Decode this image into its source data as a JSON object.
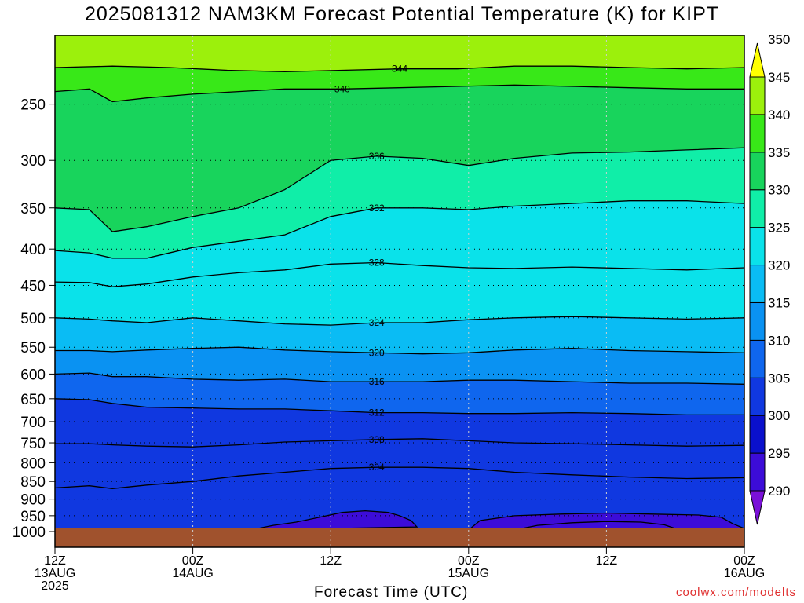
{
  "title": "2025081312 NAM3KM Forecast Potential Temperature (K) for KIPT",
  "credit": "coolwx.com/modelts",
  "chart_data": {
    "type": "heatmap",
    "title": "2025081312 NAM3KM Forecast Potential Temperature (K) for KIPT",
    "xlabel": "Forecast Time (UTC)",
    "ylabel": "",
    "y_scale": "log-pressure",
    "y_range_hpa": [
      1000,
      200
    ],
    "y_ticks": [
      250,
      300,
      350,
      400,
      450,
      500,
      550,
      600,
      650,
      700,
      750,
      800,
      850,
      900,
      950,
      1000
    ],
    "x_ticks": [
      {
        "hour": 0,
        "line1": "12Z",
        "line2": "13AUG",
        "line3": "2025"
      },
      {
        "hour": 12,
        "line1": "00Z",
        "line2": "14AUG",
        "line3": ""
      },
      {
        "hour": 24,
        "line1": "12Z",
        "line2": "",
        "line3": ""
      },
      {
        "hour": 36,
        "line1": "00Z",
        "line2": "15AUG",
        "line3": ""
      },
      {
        "hour": 48,
        "line1": "12Z",
        "line2": "",
        "line3": ""
      },
      {
        "hour": 60,
        "line1": "00Z",
        "line2": "16AUG",
        "line3": ""
      }
    ],
    "grid": true,
    "colorbar": {
      "levels": [
        290,
        295,
        300,
        305,
        310,
        315,
        320,
        325,
        330,
        335,
        340,
        345,
        350
      ],
      "labels": [
        "290",
        "295",
        "300",
        "305",
        "310",
        "315",
        "320",
        "325",
        "330",
        "335",
        "340",
        "345",
        "350"
      ],
      "colors": [
        "#7a10d8",
        "#3c0cd8",
        "#0a10cc",
        "#1038e0",
        "#0f66ee",
        "#0a92f2",
        "#0abcf4",
        "#0ae2ea",
        "#10eea8",
        "#18d45c",
        "#38e818",
        "#9cf00c",
        "#ffff00"
      ]
    },
    "isotherms": [
      {
        "theta": 344,
        "p": [
          [
            0,
            222
          ],
          [
            5,
            221
          ],
          [
            10,
            222
          ],
          [
            15,
            224
          ],
          [
            20,
            225
          ],
          [
            25,
            224
          ],
          [
            30,
            223
          ],
          [
            35,
            223
          ],
          [
            40,
            221
          ],
          [
            45,
            221
          ],
          [
            50,
            222
          ],
          [
            55,
            223
          ],
          [
            60,
            222
          ]
        ]
      },
      {
        "theta": 340,
        "p": [
          [
            0,
            240
          ],
          [
            3,
            238
          ],
          [
            5,
            248
          ],
          [
            8,
            245
          ],
          [
            12,
            242
          ],
          [
            16,
            240
          ],
          [
            20,
            238
          ],
          [
            25,
            238
          ],
          [
            30,
            237
          ],
          [
            35,
            236
          ],
          [
            40,
            235
          ],
          [
            45,
            236
          ],
          [
            50,
            237
          ],
          [
            55,
            238
          ],
          [
            60,
            238
          ]
        ]
      },
      {
        "theta": 336,
        "p": [
          [
            0,
            350
          ],
          [
            3,
            352
          ],
          [
            5,
            378
          ],
          [
            8,
            372
          ],
          [
            12,
            360
          ],
          [
            16,
            350
          ],
          [
            20,
            330
          ],
          [
            24,
            300
          ],
          [
            28,
            296
          ],
          [
            32,
            298
          ],
          [
            36,
            305
          ],
          [
            40,
            298
          ],
          [
            45,
            293
          ],
          [
            50,
            292
          ],
          [
            55,
            290
          ],
          [
            60,
            288
          ]
        ]
      },
      {
        "theta": 332,
        "p": [
          [
            0,
            402
          ],
          [
            3,
            405
          ],
          [
            5,
            412
          ],
          [
            8,
            412
          ],
          [
            12,
            398
          ],
          [
            16,
            390
          ],
          [
            20,
            382
          ],
          [
            24,
            360
          ],
          [
            28,
            350
          ],
          [
            32,
            350
          ],
          [
            36,
            352
          ],
          [
            40,
            348
          ],
          [
            45,
            345
          ],
          [
            50,
            342
          ],
          [
            55,
            342
          ],
          [
            60,
            345
          ]
        ]
      },
      {
        "theta": 328,
        "p": [
          [
            0,
            445
          ],
          [
            3,
            446
          ],
          [
            5,
            452
          ],
          [
            8,
            448
          ],
          [
            12,
            438
          ],
          [
            16,
            432
          ],
          [
            20,
            428
          ],
          [
            24,
            420
          ],
          [
            28,
            418
          ],
          [
            32,
            422
          ],
          [
            36,
            425
          ],
          [
            40,
            426
          ],
          [
            45,
            424
          ],
          [
            50,
            426
          ],
          [
            55,
            428
          ],
          [
            60,
            425
          ]
        ]
      },
      {
        "theta": 324,
        "p": [
          [
            0,
            500
          ],
          [
            3,
            502
          ],
          [
            5,
            505
          ],
          [
            8,
            508
          ],
          [
            12,
            500
          ],
          [
            16,
            505
          ],
          [
            20,
            510
          ],
          [
            24,
            512
          ],
          [
            28,
            508
          ],
          [
            32,
            508
          ],
          [
            36,
            503
          ],
          [
            40,
            500
          ],
          [
            45,
            498
          ],
          [
            50,
            500
          ],
          [
            55,
            502
          ],
          [
            60,
            500
          ]
        ]
      },
      {
        "theta": 320,
        "p": [
          [
            0,
            556
          ],
          [
            3,
            556
          ],
          [
            5,
            558
          ],
          [
            8,
            555
          ],
          [
            12,
            552
          ],
          [
            16,
            550
          ],
          [
            20,
            555
          ],
          [
            24,
            558
          ],
          [
            28,
            560
          ],
          [
            32,
            562
          ],
          [
            36,
            560
          ],
          [
            40,
            555
          ],
          [
            45,
            552
          ],
          [
            50,
            556
          ],
          [
            55,
            558
          ],
          [
            60,
            560
          ]
        ]
      },
      {
        "theta": 316,
        "p": [
          [
            0,
            600
          ],
          [
            3,
            598
          ],
          [
            5,
            605
          ],
          [
            8,
            605
          ],
          [
            12,
            610
          ],
          [
            16,
            612
          ],
          [
            20,
            610
          ],
          [
            24,
            615
          ],
          [
            28,
            615
          ],
          [
            32,
            615
          ],
          [
            36,
            612
          ],
          [
            40,
            612
          ],
          [
            45,
            615
          ],
          [
            50,
            618
          ],
          [
            55,
            618
          ],
          [
            60,
            620
          ]
        ]
      },
      {
        "theta": 312,
        "p": [
          [
            0,
            650
          ],
          [
            3,
            652
          ],
          [
            5,
            660
          ],
          [
            8,
            668
          ],
          [
            12,
            670
          ],
          [
            16,
            672
          ],
          [
            20,
            672
          ],
          [
            24,
            676
          ],
          [
            28,
            680
          ],
          [
            32,
            680
          ],
          [
            36,
            682
          ],
          [
            40,
            682
          ],
          [
            45,
            680
          ],
          [
            50,
            682
          ],
          [
            55,
            685
          ],
          [
            60,
            685
          ]
        ]
      },
      {
        "theta": 308,
        "p": [
          [
            0,
            752
          ],
          [
            3,
            752
          ],
          [
            5,
            755
          ],
          [
            8,
            758
          ],
          [
            12,
            760
          ],
          [
            16,
            755
          ],
          [
            20,
            748
          ],
          [
            24,
            745
          ],
          [
            28,
            742
          ],
          [
            32,
            740
          ],
          [
            36,
            745
          ],
          [
            40,
            750
          ],
          [
            45,
            752
          ],
          [
            50,
            755
          ],
          [
            55,
            758
          ],
          [
            60,
            756
          ]
        ]
      },
      {
        "theta": 304,
        "p": [
          [
            0,
            868
          ],
          [
            3,
            862
          ],
          [
            5,
            870
          ],
          [
            8,
            860
          ],
          [
            12,
            850
          ],
          [
            16,
            835
          ],
          [
            20,
            825
          ],
          [
            24,
            815
          ],
          [
            28,
            812
          ],
          [
            32,
            812
          ],
          [
            36,
            815
          ],
          [
            40,
            825
          ],
          [
            45,
            832
          ],
          [
            50,
            838
          ],
          [
            55,
            842
          ],
          [
            60,
            840
          ]
        ]
      },
      {
        "theta": 300,
        "p": [
          [
            17,
            995
          ],
          [
            19,
            980
          ],
          [
            21,
            970
          ],
          [
            23,
            955
          ],
          [
            25,
            940
          ],
          [
            27,
            935
          ],
          [
            29,
            940
          ],
          [
            30,
            950
          ],
          [
            31,
            965
          ],
          [
            31.5,
            985
          ]
        ]
      },
      {
        "theta": 300,
        "p": [
          [
            36,
            995
          ],
          [
            37,
            965
          ],
          [
            40,
            950
          ],
          [
            44,
            945
          ],
          [
            48,
            942
          ],
          [
            52,
            945
          ],
          [
            56,
            948
          ],
          [
            58,
            955
          ],
          [
            59,
            975
          ],
          [
            60,
            990
          ]
        ]
      },
      {
        "theta": 296,
        "p": [
          [
            40,
            995
          ],
          [
            42,
            980
          ],
          [
            45,
            972
          ],
          [
            48,
            968
          ],
          [
            51,
            970
          ],
          [
            53,
            978
          ],
          [
            54,
            990
          ]
        ]
      }
    ]
  }
}
